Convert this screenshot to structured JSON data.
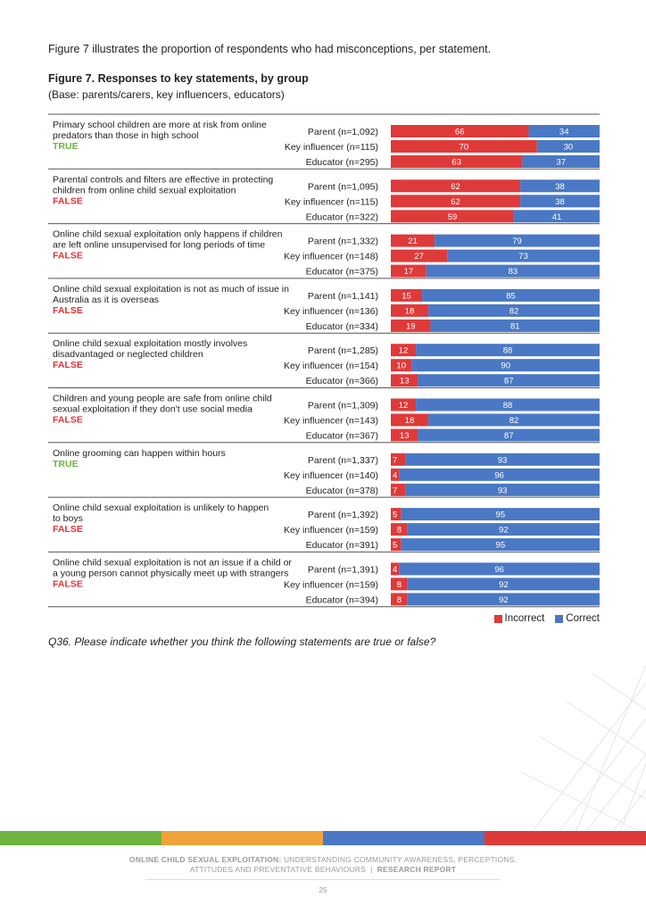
{
  "intro_text": "Figure 7 illustrates the proportion of respondents who had misconceptions, per statement.",
  "figure_title": "Figure 7. Responses to key statements, by group",
  "figure_base": "(Base: parents/carers, key influencers, educators)",
  "question_text": "Q36. Please indicate whether you think the following statements are true or false?",
  "legend": {
    "incorrect": "Incorrect",
    "correct": "Correct"
  },
  "colors": {
    "incorrect": "#df3a3a",
    "correct": "#4a78c4",
    "true": "#6cb33f",
    "false": "#e63232",
    "bar_text": "#ffffff",
    "divider": "#555555"
  },
  "footer": {
    "bold": "ONLINE CHILD SEXUAL EXPLOITATION:",
    "line1": " UNDERSTANDING COMMUNITY AWARENESS, PERCEPTIONS,",
    "line2": "ATTITUDES AND PREVENTATIVE BEHAVIOURS",
    "separator": "|",
    "report": "RESEARCH REPORT",
    "colors": [
      "#6cb33f",
      "#f0a23a",
      "#4a78c4",
      "#df3a3a"
    ]
  },
  "page_number": "25",
  "chart_data": {
    "type": "bar",
    "orientation": "horizontal",
    "stacked": true,
    "unit": "%",
    "xlim": [
      0,
      100
    ],
    "series_names": [
      "Incorrect",
      "Correct"
    ],
    "groups": [
      {
        "statement": [
          "Primary school children are more at risk from online",
          "predators than those in high school"
        ],
        "answer": "TRUE",
        "rows": [
          {
            "label": "Parent (n=1,092)",
            "incorrect": 66,
            "correct": 34
          },
          {
            "label": "Key influencer (n=115)",
            "incorrect": 70,
            "correct": 30
          },
          {
            "label": "Educator (n=295)",
            "incorrect": 63,
            "correct": 37
          }
        ]
      },
      {
        "statement": [
          "Parental controls and filters are effective in protecting",
          "children from online child sexual exploitation"
        ],
        "answer": "FALSE",
        "rows": [
          {
            "label": "Parent (n=1,095)",
            "incorrect": 62,
            "correct": 38
          },
          {
            "label": "Key influencer (n=115)",
            "incorrect": 62,
            "correct": 38
          },
          {
            "label": "Educator (n=322)",
            "incorrect": 59,
            "correct": 41
          }
        ]
      },
      {
        "statement": [
          "Online child sexual exploitation only happens if children",
          "are left online unsupervised for long periods of time"
        ],
        "answer": "FALSE",
        "rows": [
          {
            "label": "Parent (n=1,332)",
            "incorrect": 21,
            "correct": 79
          },
          {
            "label": "Key influencer (n=148)",
            "incorrect": 27,
            "correct": 73
          },
          {
            "label": "Educator (n=375)",
            "incorrect": 17,
            "correct": 83
          }
        ]
      },
      {
        "statement": [
          "Online child sexual exploitation is not as much of issue in",
          "Australia as it is overseas"
        ],
        "answer": "FALSE",
        "rows": [
          {
            "label": "Parent (n=1,141)",
            "incorrect": 15,
            "correct": 85
          },
          {
            "label": "Key influencer (n=136)",
            "incorrect": 18,
            "correct": 82
          },
          {
            "label": "Educator (n=334)",
            "incorrect": 19,
            "correct": 81
          }
        ]
      },
      {
        "statement": [
          "Online child sexual exploitation mostly involves",
          "disadvantaged or neglected children"
        ],
        "answer": "FALSE",
        "rows": [
          {
            "label": "Parent (n=1,285)",
            "incorrect": 12,
            "correct": 88
          },
          {
            "label": "Key influencer (n=154)",
            "incorrect": 10,
            "correct": 90
          },
          {
            "label": "Educator (n=366)",
            "incorrect": 13,
            "correct": 87
          }
        ]
      },
      {
        "statement": [
          "Children and young people are safe from online child",
          "sexual exploitation if they don't use social media"
        ],
        "answer": "FALSE",
        "rows": [
          {
            "label": "Parent (n=1,309)",
            "incorrect": 12,
            "correct": 88
          },
          {
            "label": "Key influencer (n=143)",
            "incorrect": 18,
            "correct": 82
          },
          {
            "label": "Educator (n=367)",
            "incorrect": 13,
            "correct": 87
          }
        ]
      },
      {
        "statement": [
          "Online grooming can happen within hours"
        ],
        "answer": "TRUE",
        "rows": [
          {
            "label": "Parent (n=1,337)",
            "incorrect": 7,
            "correct": 93
          },
          {
            "label": "Key influencer (n=140)",
            "incorrect": 4,
            "correct": 96
          },
          {
            "label": "Educator (n=378)",
            "incorrect": 7,
            "correct": 93
          }
        ]
      },
      {
        "statement": [
          "Online child sexual exploitation is unlikely to happen",
          "to boys"
        ],
        "answer": "FALSE",
        "rows": [
          {
            "label": "Parent (n=1,392)",
            "incorrect": 5,
            "correct": 95
          },
          {
            "label": "Key influencer (n=159)",
            "incorrect": 8,
            "correct": 92
          },
          {
            "label": "Educator (n=391)",
            "incorrect": 5,
            "correct": 95
          }
        ]
      },
      {
        "statement": [
          "Online child sexual exploitation is not an issue if a child or",
          "a young person cannot physically meet up with strangers"
        ],
        "answer": "FALSE",
        "rows": [
          {
            "label": "Parent (n=1,391)",
            "incorrect": 4,
            "correct": 96
          },
          {
            "label": "Key influencer (n=159)",
            "incorrect": 8,
            "correct": 92
          },
          {
            "label": "Educator (n=394)",
            "incorrect": 8,
            "correct": 92
          }
        ]
      }
    ]
  }
}
